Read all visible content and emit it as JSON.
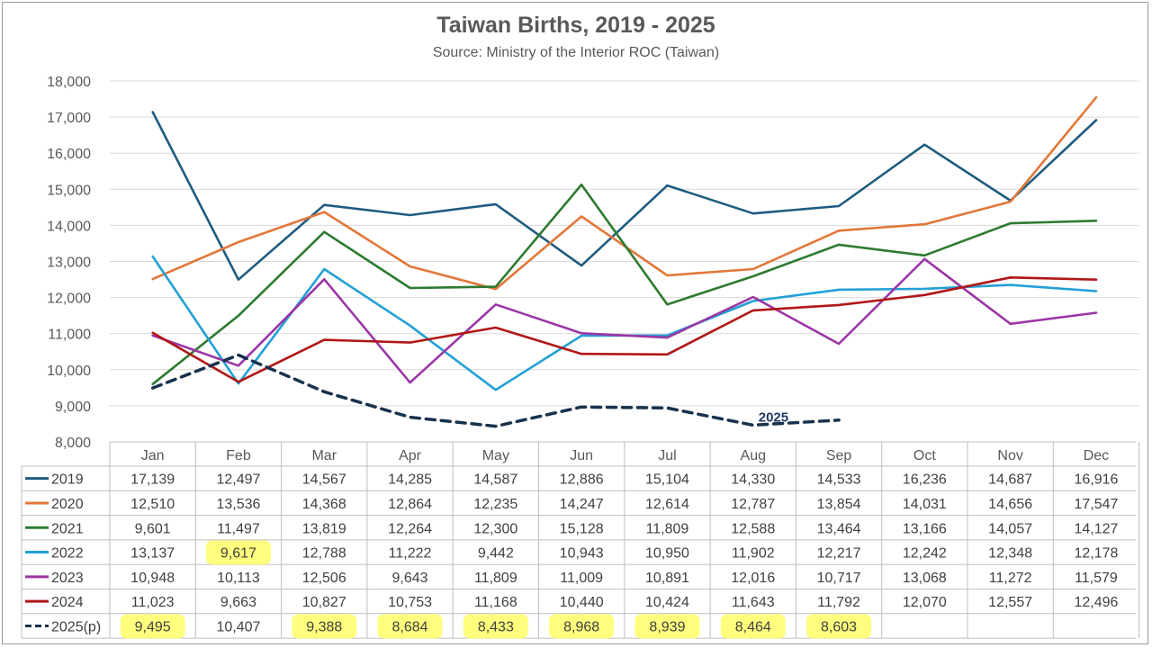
{
  "title": "Taiwan Births, 2019 - 2025",
  "subtitle": "Source: Ministry of the Interior ROC (Taiwan)",
  "annotation": "2025",
  "chart_data": {
    "type": "line",
    "title": "Taiwan Births, 2019 - 2025",
    "subtitle": "Source: Ministry of the Interior ROC (Taiwan)",
    "xlabel": "",
    "ylabel": "",
    "ylim": [
      8000,
      18000
    ],
    "yticks": [
      "8,000",
      "9,000",
      "10,000",
      "11,000",
      "12,000",
      "13,000",
      "14,000",
      "15,000",
      "16,000",
      "17,000",
      "18,000"
    ],
    "grid": true,
    "legend": "data-table",
    "categories": [
      "Jan",
      "Feb",
      "Mar",
      "Apr",
      "May",
      "Jun",
      "Jul",
      "Aug",
      "Sep",
      "Oct",
      "Nov",
      "Dec"
    ],
    "series": [
      {
        "name": "2019",
        "color": "#1f5c80",
        "dashed": false,
        "values": [
          17139,
          12497,
          14567,
          14285,
          14587,
          12886,
          15104,
          14330,
          14533,
          16236,
          14687,
          16916
        ],
        "labels": [
          "17,139",
          "12,497",
          "14,567",
          "14,285",
          "14,587",
          "12,886",
          "15,104",
          "14,330",
          "14,533",
          "16,236",
          "14,687",
          "16,916"
        ],
        "highlight": []
      },
      {
        "name": "2020",
        "color": "#e2773a",
        "dashed": false,
        "values": [
          12510,
          13536,
          14368,
          12864,
          12235,
          14247,
          12614,
          12787,
          13854,
          14031,
          14656,
          17547
        ],
        "labels": [
          "12,510",
          "13,536",
          "14,368",
          "12,864",
          "12,235",
          "14,247",
          "12,614",
          "12,787",
          "13,854",
          "14,031",
          "14,656",
          "17,547"
        ],
        "highlight": []
      },
      {
        "name": "2021",
        "color": "#2e7a30",
        "dashed": false,
        "values": [
          9601,
          11497,
          13819,
          12264,
          12300,
          15128,
          11809,
          12588,
          13464,
          13166,
          14057,
          14127
        ],
        "labels": [
          "9,601",
          "11,497",
          "13,819",
          "12,264",
          "12,300",
          "15,128",
          "11,809",
          "12,588",
          "13,464",
          "13,166",
          "14,057",
          "14,127"
        ],
        "highlight": []
      },
      {
        "name": "2022",
        "color": "#22a0d4",
        "dashed": false,
        "values": [
          13137,
          9617,
          12788,
          11222,
          9442,
          10943,
          10950,
          11902,
          12217,
          12242,
          12348,
          12178
        ],
        "labels": [
          "13,137",
          "9,617",
          "12,788",
          "11,222",
          "9,442",
          "10,943",
          "10,950",
          "11,902",
          "12,217",
          "12,242",
          "12,348",
          "12,178"
        ],
        "highlight": [
          1
        ]
      },
      {
        "name": "2023",
        "color": "#9b36a6",
        "dashed": false,
        "values": [
          10948,
          10113,
          12506,
          9643,
          11809,
          11009,
          10891,
          12016,
          10717,
          13068,
          11272,
          11579
        ],
        "labels": [
          "10,948",
          "10,113",
          "12,506",
          "9,643",
          "11,809",
          "11,009",
          "10,891",
          "12,016",
          "10,717",
          "13,068",
          "11,272",
          "11,579"
        ],
        "highlight": []
      },
      {
        "name": "2024",
        "color": "#b01717",
        "dashed": false,
        "values": [
          11023,
          9663,
          10827,
          10753,
          11168,
          10440,
          10424,
          11643,
          11792,
          12070,
          12557,
          12496
        ],
        "labels": [
          "11,023",
          "9,663",
          "10,827",
          "10,753",
          "11,168",
          "10,440",
          "10,424",
          "11,643",
          "11,792",
          "12,070",
          "12,557",
          "12,496"
        ],
        "highlight": []
      },
      {
        "name": "2025(p)",
        "color": "#17324d",
        "dashed": true,
        "values": [
          9495,
          10407,
          9388,
          8684,
          8433,
          8968,
          8939,
          8464,
          8603,
          null,
          null,
          null
        ],
        "labels": [
          "9,495",
          "10,407",
          "9,388",
          "8,684",
          "8,433",
          "8,968",
          "8,939",
          "8,464",
          "8,603",
          "",
          "",
          ""
        ],
        "highlight": [
          0,
          2,
          3,
          4,
          5,
          6,
          7,
          8
        ]
      }
    ]
  }
}
